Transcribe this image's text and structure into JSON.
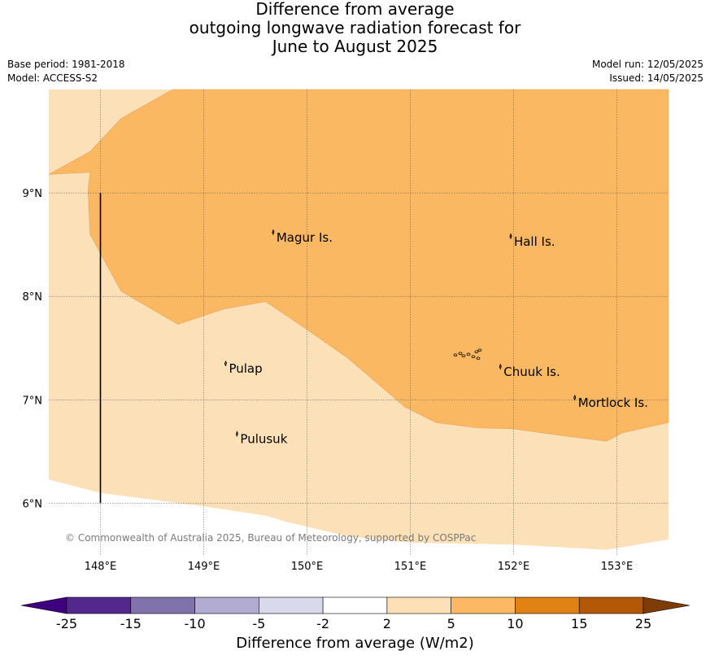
{
  "title": {
    "line1": "Difference from average",
    "line2": "outgoing longwave radiation forecast for",
    "line3": "June to August 2025"
  },
  "meta": {
    "base_period": "Base period: 1981-2018",
    "model": "Model: ACCESS-S2",
    "model_run": "Model run: 12/05/2025",
    "issued": "Issued: 14/05/2025"
  },
  "map": {
    "lon_range": [
      147.5,
      153.5
    ],
    "lat_range": [
      5.5,
      10.0
    ],
    "lon_ticks": [
      148,
      149,
      150,
      151,
      152,
      153
    ],
    "lon_tick_labels": [
      "148°E",
      "149°E",
      "150°E",
      "151°E",
      "152°E",
      "153°E"
    ],
    "lat_ticks": [
      6,
      7,
      8,
      9
    ],
    "lat_tick_labels": [
      "6°N",
      "7°N",
      "8°N",
      "9°N"
    ],
    "gridlines": true,
    "background_color": "#fce0b7",
    "regions": [
      {
        "category": "5 to 10",
        "color": "#fbb862",
        "outline": [
          [
            147.5,
            9.18
          ],
          [
            147.9,
            9.4
          ],
          [
            148.2,
            9.72
          ],
          [
            148.7,
            10.0
          ],
          [
            153.5,
            10.0
          ],
          [
            153.5,
            6.78
          ],
          [
            153.05,
            6.68
          ],
          [
            152.9,
            6.6
          ],
          [
            152.5,
            6.65
          ],
          [
            152.0,
            6.72
          ],
          [
            151.65,
            6.73
          ],
          [
            151.25,
            6.78
          ],
          [
            150.95,
            6.93
          ],
          [
            150.4,
            7.4
          ],
          [
            150.0,
            7.68
          ],
          [
            149.6,
            7.95
          ],
          [
            149.2,
            7.88
          ],
          [
            148.75,
            7.73
          ],
          [
            148.2,
            8.05
          ],
          [
            147.9,
            8.6
          ],
          [
            147.88,
            9.02
          ],
          [
            147.9,
            9.2
          ]
        ]
      }
    ],
    "outside_color": "#fce0b7",
    "islands": [
      {
        "name": "Magur Is.",
        "lon": 149.68,
        "lat": 8.57
      },
      {
        "name": "Hall Is.",
        "lon": 151.98,
        "lat": 8.53
      },
      {
        "name": "Pulap",
        "lon": 149.22,
        "lat": 7.3
      },
      {
        "name": "Chuuk Is.",
        "lon": 151.88,
        "lat": 7.27
      },
      {
        "name": "Mortlock Is.",
        "lon": 152.6,
        "lat": 6.97
      },
      {
        "name": "Pulusuk",
        "lon": 149.33,
        "lat": 6.62
      }
    ],
    "boundary_line": {
      "lon": 148.0,
      "lat_from": 6.0,
      "lat_to": 9.0
    },
    "copyright": "© Commonwealth of Australia 2025, Bureau of Meteorology, supported by COSPPac"
  },
  "colorbar": {
    "labels": [
      "-25",
      "-15",
      "-10",
      "-5",
      "-2",
      "2",
      "5",
      "10",
      "15",
      "25"
    ],
    "colors": [
      "#3f007d",
      "#54278f",
      "#8073ac",
      "#b2abd2",
      "#d8daeb",
      "#ffffff",
      "#fee0b6",
      "#fdb863",
      "#e08214",
      "#b35806",
      "#7f3b08"
    ],
    "title": "Difference from average (W/m2)"
  }
}
